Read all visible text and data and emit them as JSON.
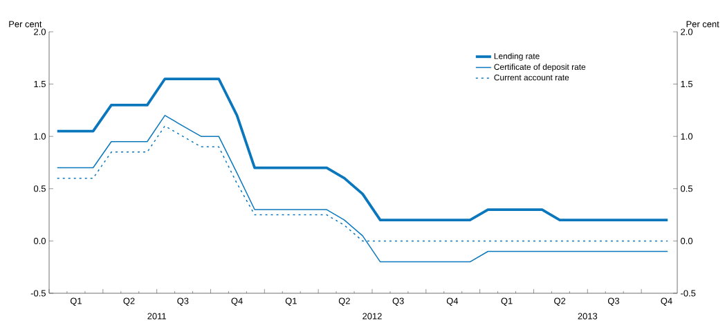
{
  "chart_data": {
    "type": "line",
    "ylabel": "Per cent",
    "y2label": "Per cent",
    "x": [
      "2011-01-15",
      "2011-02-15",
      "2011-03-15",
      "2011-04-15",
      "2011-05-15",
      "2011-06-15",
      "2011-07-15",
      "2011-08-15",
      "2011-09-15",
      "2011-10-15",
      "2011-11-15",
      "2011-12-15",
      "2012-01-15",
      "2012-02-15",
      "2012-03-15",
      "2012-04-15",
      "2012-05-15",
      "2012-06-15",
      "2012-07-15",
      "2012-08-15",
      "2012-09-15",
      "2012-10-15",
      "2012-11-15",
      "2012-12-15",
      "2013-01-15",
      "2013-02-15",
      "2013-03-15",
      "2013-04-15",
      "2013-05-15",
      "2013-06-15",
      "2013-07-15",
      "2013-08-15",
      "2013-09-15",
      "2013-10-15",
      "2013-11-15"
    ],
    "series": [
      {
        "name": "Lending rate",
        "color": "#0a77bd",
        "line_style": "solid",
        "values": [
          1.05,
          1.05,
          1.05,
          1.3,
          1.3,
          1.3,
          1.55,
          1.55,
          1.55,
          1.55,
          1.2,
          0.7,
          0.7,
          0.7,
          0.7,
          0.7,
          0.6,
          0.45,
          0.2,
          0.2,
          0.2,
          0.2,
          0.2,
          0.2,
          0.3,
          0.3,
          0.3,
          0.3,
          0.2,
          0.2,
          0.2,
          0.2,
          0.2,
          0.2,
          0.2
        ]
      },
      {
        "name": "Certificate of deposit rate",
        "color": "#0a77bd",
        "line_style": "solid",
        "values": [
          0.7,
          0.7,
          0.7,
          0.95,
          0.95,
          0.95,
          1.2,
          1.1,
          1.0,
          1.0,
          0.65,
          0.3,
          0.3,
          0.3,
          0.3,
          0.3,
          0.2,
          0.05,
          -0.2,
          -0.2,
          -0.2,
          -0.2,
          -0.2,
          -0.2,
          -0.1,
          -0.1,
          -0.1,
          -0.1,
          -0.1,
          -0.1,
          -0.1,
          -0.1,
          -0.1,
          -0.1,
          -0.1
        ]
      },
      {
        "name": "Current account rate",
        "color": "#0a77bd",
        "line_style": "dotted",
        "values": [
          0.6,
          0.6,
          0.6,
          0.85,
          0.85,
          0.85,
          1.1,
          1.0,
          0.9,
          0.9,
          0.55,
          0.25,
          0.25,
          0.25,
          0.25,
          0.25,
          0.15,
          0.0,
          0.0,
          0.0,
          0.0,
          0.0,
          0.0,
          0.0,
          0.0,
          0.0,
          0.0,
          0.0,
          0.0,
          0.0,
          0.0,
          0.0,
          0.0,
          0.0,
          0.0
        ]
      }
    ],
    "xlim": [
      "2011-01-01",
      "2013-12-01"
    ],
    "xticks": [
      {
        "value": "2011-01-01",
        "label": null
      },
      {
        "value": "2011-04-01",
        "label": null
      },
      {
        "value": "2011-07-01",
        "label": null
      },
      {
        "value": "2011-10-01",
        "label": null
      },
      {
        "value": "2012-01-01",
        "label": null
      },
      {
        "value": "2012-04-01",
        "label": null
      },
      {
        "value": "2012-07-01",
        "label": null
      },
      {
        "value": "2012-10-01",
        "label": null
      },
      {
        "value": "2013-01-01",
        "label": null
      },
      {
        "value": "2013-04-01",
        "label": null
      },
      {
        "value": "2013-07-01",
        "label": null
      },
      {
        "value": "2013-10-01",
        "label": null
      },
      {
        "value": "2011-02-15",
        "label": "Q1"
      },
      {
        "value": "2011-05-15",
        "label": "Q2"
      },
      {
        "value": "2011-08-15",
        "label": "Q3"
      },
      {
        "value": "2011-11-15",
        "label": "Q4"
      },
      {
        "value": "2012-02-15",
        "label": "Q1"
      },
      {
        "value": "2012-05-15",
        "label": "Q2"
      },
      {
        "value": "2012-08-15",
        "label": "Q3"
      },
      {
        "value": "2012-11-15",
        "label": "Q4"
      },
      {
        "value": "2013-02-15",
        "label": "Q1"
      },
      {
        "value": "2013-05-15",
        "label": "Q2"
      },
      {
        "value": "2013-08-15",
        "label": "Q3"
      },
      {
        "value": "2013-11-13",
        "label": "Q4"
      }
    ],
    "annotations": [
      "2011",
      "2012",
      "2013"
    ],
    "ylim": [
      -0.5,
      2.0
    ],
    "yticks": [
      {
        "value": -0.5,
        "label": "-0.5"
      },
      {
        "value": 0,
        "label": "0.0"
      },
      {
        "value": 0.5,
        "label": "0.5"
      },
      {
        "value": 1,
        "label": "1.0"
      },
      {
        "value": 1.5,
        "label": "1.5"
      },
      {
        "value": 2,
        "label": "2.0"
      }
    ],
    "y2lim": [
      -0.5,
      2.0
    ],
    "y2ticks": [
      {
        "value": -0.5,
        "label": "-0.5"
      },
      {
        "value": 0,
        "label": "0.0"
      },
      {
        "value": 0.5,
        "label": "0.5"
      },
      {
        "value": 1,
        "label": "1.0"
      },
      {
        "value": 1.5,
        "label": "1.5"
      },
      {
        "value": 2,
        "label": "2.0"
      }
    ],
    "legend": "top right",
    "grid": false,
    "marker": "none"
  }
}
